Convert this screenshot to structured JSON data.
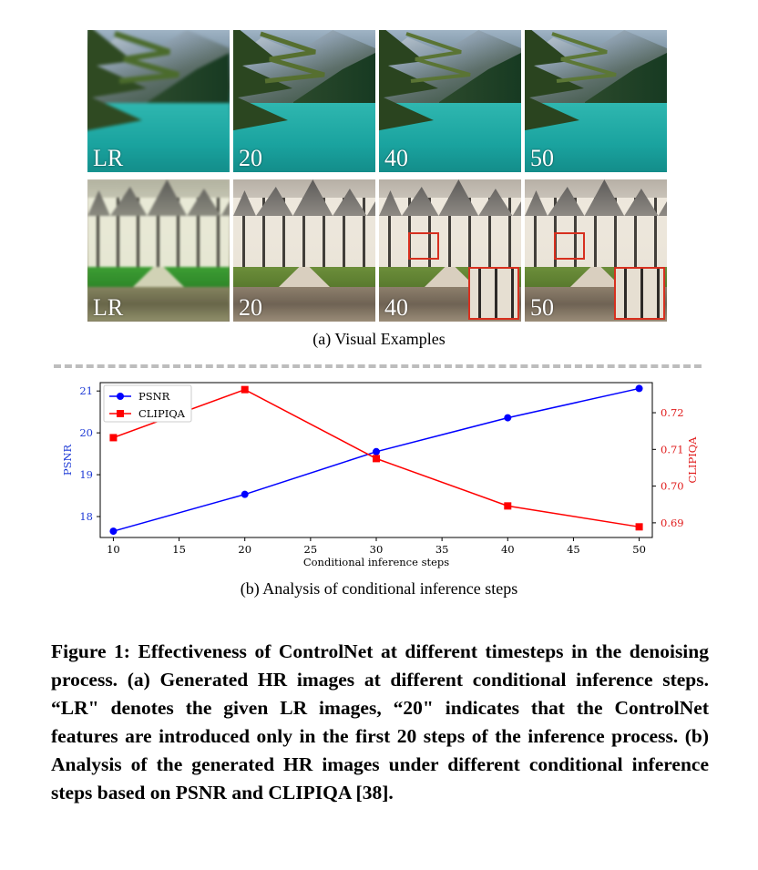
{
  "visual_examples": {
    "rows": [
      {
        "scene": "lake",
        "labels": [
          "LR",
          "20",
          "40",
          "50"
        ]
      },
      {
        "scene": "castle",
        "labels": [
          "LR",
          "20",
          "40",
          "50"
        ]
      }
    ],
    "caption": "(a) Visual Examples"
  },
  "chart_data": {
    "type": "line",
    "x": [
      10,
      20,
      30,
      40,
      50
    ],
    "xlabel": "Conditional inference steps",
    "xticks": [
      10,
      15,
      20,
      25,
      30,
      35,
      40,
      45,
      50
    ],
    "xlim": [
      9,
      51
    ],
    "series": [
      {
        "name": "PSNR",
        "axis": "left",
        "color": "#0000ff",
        "marker": "circle",
        "values": [
          17.65,
          18.53,
          19.55,
          20.36,
          21.06
        ]
      },
      {
        "name": "CLIPIQA",
        "axis": "right",
        "color": "#ff0000",
        "marker": "square",
        "values": [
          0.7132,
          0.7263,
          0.7075,
          0.6946,
          0.6889
        ]
      }
    ],
    "ylabel_left": "PSNR",
    "ylabel_right": "CLIPIQA",
    "yticks_left": [
      18,
      19,
      20,
      21
    ],
    "yticks_right": [
      "0.69",
      "0.70",
      "0.71",
      "0.72"
    ],
    "ylim_left": [
      17.5,
      21.2
    ],
    "ylim_right": [
      0.686,
      0.7282
    ],
    "legend": "top-left",
    "grid": false
  },
  "caption_b": "(b) Analysis of conditional inference steps",
  "figure_caption": "Figure 1: Effectiveness of ControlNet at different timesteps in the denoising process. (a) Generated HR images at different conditional inference steps. “LR\" denotes the given LR images, “20\" indicates that the ControlNet features are introduced only in the first 20 steps of the inference process. (b) Analysis of the generated HR images under different conditional inference steps based on PSNR and CLIPIQA [38]."
}
